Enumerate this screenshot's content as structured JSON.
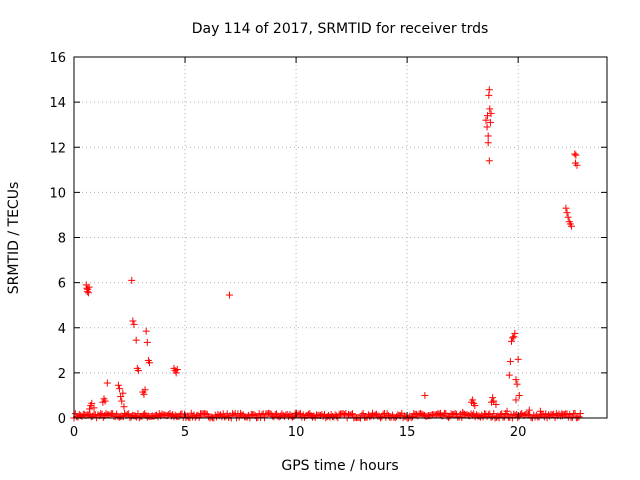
{
  "chart_data": {
    "type": "scatter",
    "title": "Day 114 of 2017, SRMTID for receiver trds",
    "xlabel": "GPS time / hours",
    "ylabel": "SRMTID / TECUs",
    "xlim": [
      0,
      24
    ],
    "ylim": [
      0,
      16
    ],
    "grid": true,
    "marker": "+",
    "color": "#ff0000",
    "x_ticks": [
      0,
      5,
      10,
      15,
      20
    ],
    "y_ticks": [
      0,
      2,
      4,
      6,
      8,
      10,
      12,
      14,
      16
    ],
    "series": [
      {
        "name": "SRMTID",
        "points": [
          [
            0.55,
            5.9
          ],
          [
            0.58,
            5.75
          ],
          [
            0.6,
            5.6
          ],
          [
            0.62,
            5.7
          ],
          [
            0.65,
            5.55
          ],
          [
            0.68,
            5.8
          ],
          [
            0.7,
            0.4
          ],
          [
            0.75,
            0.55
          ],
          [
            0.8,
            0.65
          ],
          [
            0.9,
            0.45
          ],
          [
            1.3,
            0.7
          ],
          [
            1.35,
            0.85
          ],
          [
            1.4,
            0.75
          ],
          [
            1.5,
            1.55
          ],
          [
            2.0,
            1.45
          ],
          [
            2.05,
            1.3
          ],
          [
            2.1,
            0.95
          ],
          [
            2.15,
            0.75
          ],
          [
            2.2,
            1.1
          ],
          [
            2.25,
            0.5
          ],
          [
            2.6,
            6.1
          ],
          [
            2.65,
            4.3
          ],
          [
            2.7,
            4.15
          ],
          [
            2.8,
            3.45
          ],
          [
            2.85,
            2.2
          ],
          [
            2.9,
            2.1
          ],
          [
            3.1,
            1.15
          ],
          [
            3.15,
            1.05
          ],
          [
            3.2,
            1.25
          ],
          [
            3.25,
            3.85
          ],
          [
            3.3,
            3.35
          ],
          [
            3.35,
            2.55
          ],
          [
            3.4,
            2.45
          ],
          [
            4.5,
            2.2
          ],
          [
            4.55,
            2.1
          ],
          [
            4.6,
            2.0
          ],
          [
            4.65,
            2.15
          ],
          [
            7.0,
            5.45
          ],
          [
            15.8,
            1.0
          ],
          [
            17.9,
            0.7
          ],
          [
            17.95,
            0.8
          ],
          [
            18.0,
            0.65
          ],
          [
            18.05,
            0.55
          ],
          [
            18.55,
            13.2
          ],
          [
            18.6,
            12.9
          ],
          [
            18.62,
            13.4
          ],
          [
            18.65,
            12.5
          ],
          [
            18.68,
            14.3
          ],
          [
            18.7,
            14.55
          ],
          [
            18.72,
            13.7
          ],
          [
            18.75,
            13.1
          ],
          [
            18.7,
            11.4
          ],
          [
            18.65,
            12.2
          ],
          [
            18.78,
            13.5
          ],
          [
            18.8,
            0.7
          ],
          [
            18.85,
            0.9
          ],
          [
            18.9,
            0.75
          ],
          [
            19.0,
            0.6
          ],
          [
            19.6,
            1.9
          ],
          [
            19.65,
            2.5
          ],
          [
            19.7,
            3.4
          ],
          [
            19.75,
            3.55
          ],
          [
            19.8,
            3.6
          ],
          [
            19.85,
            3.75
          ],
          [
            19.9,
            1.7
          ],
          [
            19.95,
            1.5
          ],
          [
            20.0,
            2.6
          ],
          [
            19.9,
            0.8
          ],
          [
            20.05,
            1.0
          ],
          [
            22.15,
            9.3
          ],
          [
            22.2,
            9.1
          ],
          [
            22.25,
            8.9
          ],
          [
            22.3,
            8.7
          ],
          [
            22.35,
            8.6
          ],
          [
            22.4,
            8.5
          ],
          [
            22.55,
            11.7
          ],
          [
            22.6,
            11.65
          ],
          [
            22.58,
            11.3
          ],
          [
            22.65,
            11.2
          ],
          [
            22.0,
            0.1
          ],
          [
            21.0,
            0.3
          ],
          [
            20.5,
            0.35
          ],
          [
            19.5,
            0.3
          ],
          [
            17.5,
            0.25
          ],
          [
            16.5,
            0.15
          ]
        ]
      }
    ],
    "baseline_band": {
      "x_start": 0.0,
      "x_end": 22.8,
      "y_low": 0.0,
      "y_high": 0.35
    }
  }
}
